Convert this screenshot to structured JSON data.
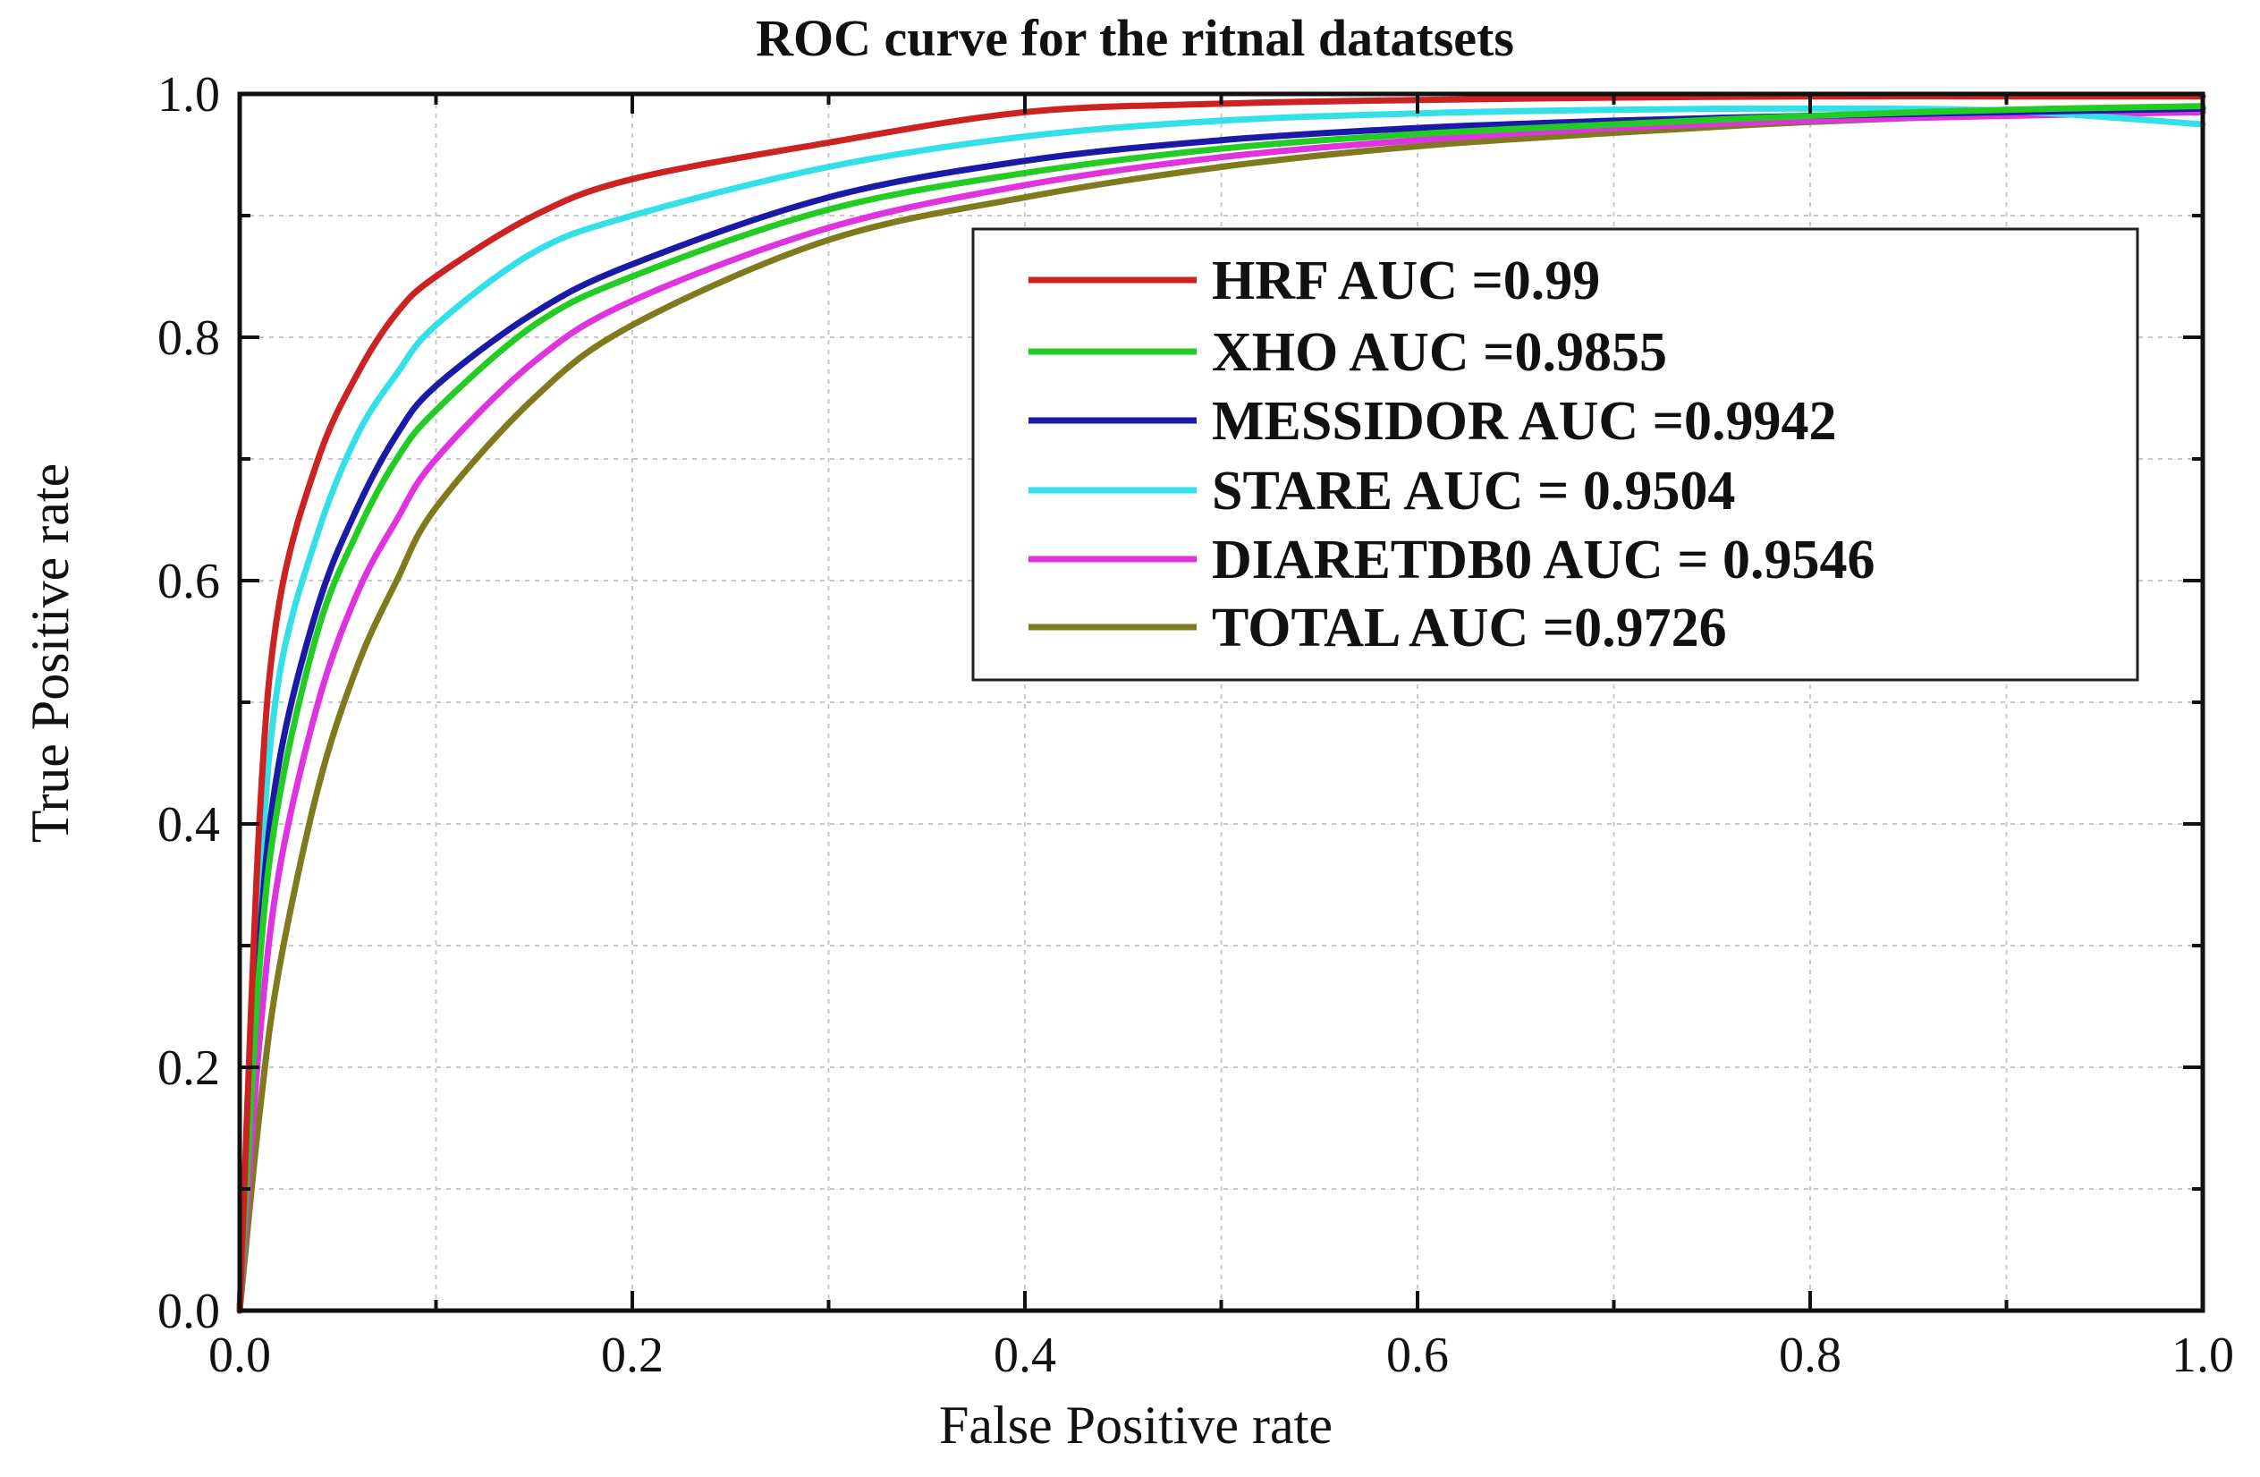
{
  "chart_data": {
    "type": "line",
    "title": "ROC curve for the ritnal datatsets",
    "xlabel": "False Positive rate",
    "ylabel": "True Positive rate",
    "xlim": [
      0.0,
      1.0
    ],
    "ylim": [
      0.0,
      1.0
    ],
    "xticks": [
      "0.0",
      "0.2",
      "0.4",
      "0.6",
      "0.8",
      "1.0"
    ],
    "yticks": [
      "0.0",
      "0.2",
      "0.4",
      "0.6",
      "0.8",
      "1.0"
    ],
    "grid": true,
    "legend_position": "upper-right",
    "series": [
      {
        "name": "HRF AUC =0.99",
        "color": "#cc2222",
        "x": [
          0.0,
          0.01,
          0.02,
          0.04,
          0.06,
          0.08,
          0.1,
          0.15,
          0.2,
          0.3,
          0.4,
          0.5,
          0.6,
          0.7,
          0.8,
          0.9,
          1.0
        ],
        "y": [
          0.0,
          0.4,
          0.58,
          0.7,
          0.77,
          0.82,
          0.85,
          0.9,
          0.93,
          0.96,
          0.985,
          0.992,
          0.995,
          0.997,
          0.998,
          0.998,
          0.998
        ]
      },
      {
        "name": "XHO AUC =0.9855",
        "color": "#22cc22",
        "x": [
          0.0,
          0.01,
          0.02,
          0.04,
          0.06,
          0.08,
          0.1,
          0.15,
          0.2,
          0.3,
          0.4,
          0.5,
          0.6,
          0.7,
          0.8,
          0.9,
          1.0
        ],
        "y": [
          0.0,
          0.28,
          0.42,
          0.56,
          0.64,
          0.7,
          0.74,
          0.81,
          0.85,
          0.905,
          0.935,
          0.955,
          0.967,
          0.975,
          0.982,
          0.987,
          0.99
        ]
      },
      {
        "name": "MESSIDOR AUC =0.9942",
        "color": "#1a1aa6",
        "x": [
          0.0,
          0.01,
          0.02,
          0.04,
          0.06,
          0.08,
          0.1,
          0.15,
          0.2,
          0.3,
          0.4,
          0.5,
          0.6,
          0.7,
          0.8,
          0.9,
          1.0
        ],
        "y": [
          0.0,
          0.3,
          0.45,
          0.58,
          0.66,
          0.72,
          0.76,
          0.82,
          0.86,
          0.915,
          0.945,
          0.962,
          0.972,
          0.978,
          0.982,
          0.985,
          0.988
        ]
      },
      {
        "name": "STARE AUC = 0.9504",
        "color": "#33e0e8",
        "x": [
          0.0,
          0.01,
          0.02,
          0.04,
          0.06,
          0.08,
          0.1,
          0.15,
          0.2,
          0.3,
          0.4,
          0.5,
          0.6,
          0.7,
          0.8,
          0.9,
          1.0
        ],
        "y": [
          0.0,
          0.34,
          0.52,
          0.64,
          0.72,
          0.77,
          0.81,
          0.87,
          0.9,
          0.94,
          0.965,
          0.978,
          0.984,
          0.987,
          0.988,
          0.986,
          0.975
        ]
      },
      {
        "name": "DIARETDB0 AUC = 0.9546",
        "color": "#e033e0",
        "x": [
          0.0,
          0.01,
          0.02,
          0.04,
          0.06,
          0.08,
          0.1,
          0.15,
          0.2,
          0.3,
          0.4,
          0.5,
          0.6,
          0.7,
          0.8,
          0.9,
          1.0
        ],
        "y": [
          0.0,
          0.22,
          0.36,
          0.5,
          0.59,
          0.65,
          0.7,
          0.78,
          0.83,
          0.89,
          0.925,
          0.948,
          0.962,
          0.972,
          0.978,
          0.982,
          0.985
        ]
      },
      {
        "name": "TOTAL AUC =0.9726",
        "color": "#807a1e",
        "x": [
          0.0,
          0.01,
          0.02,
          0.04,
          0.06,
          0.08,
          0.1,
          0.15,
          0.2,
          0.3,
          0.4,
          0.5,
          0.6,
          0.7,
          0.8,
          0.9,
          1.0
        ],
        "y": [
          0.0,
          0.16,
          0.28,
          0.43,
          0.53,
          0.6,
          0.66,
          0.75,
          0.81,
          0.88,
          0.915,
          0.94,
          0.957,
          0.968,
          0.977,
          0.983,
          0.988
        ]
      }
    ]
  }
}
